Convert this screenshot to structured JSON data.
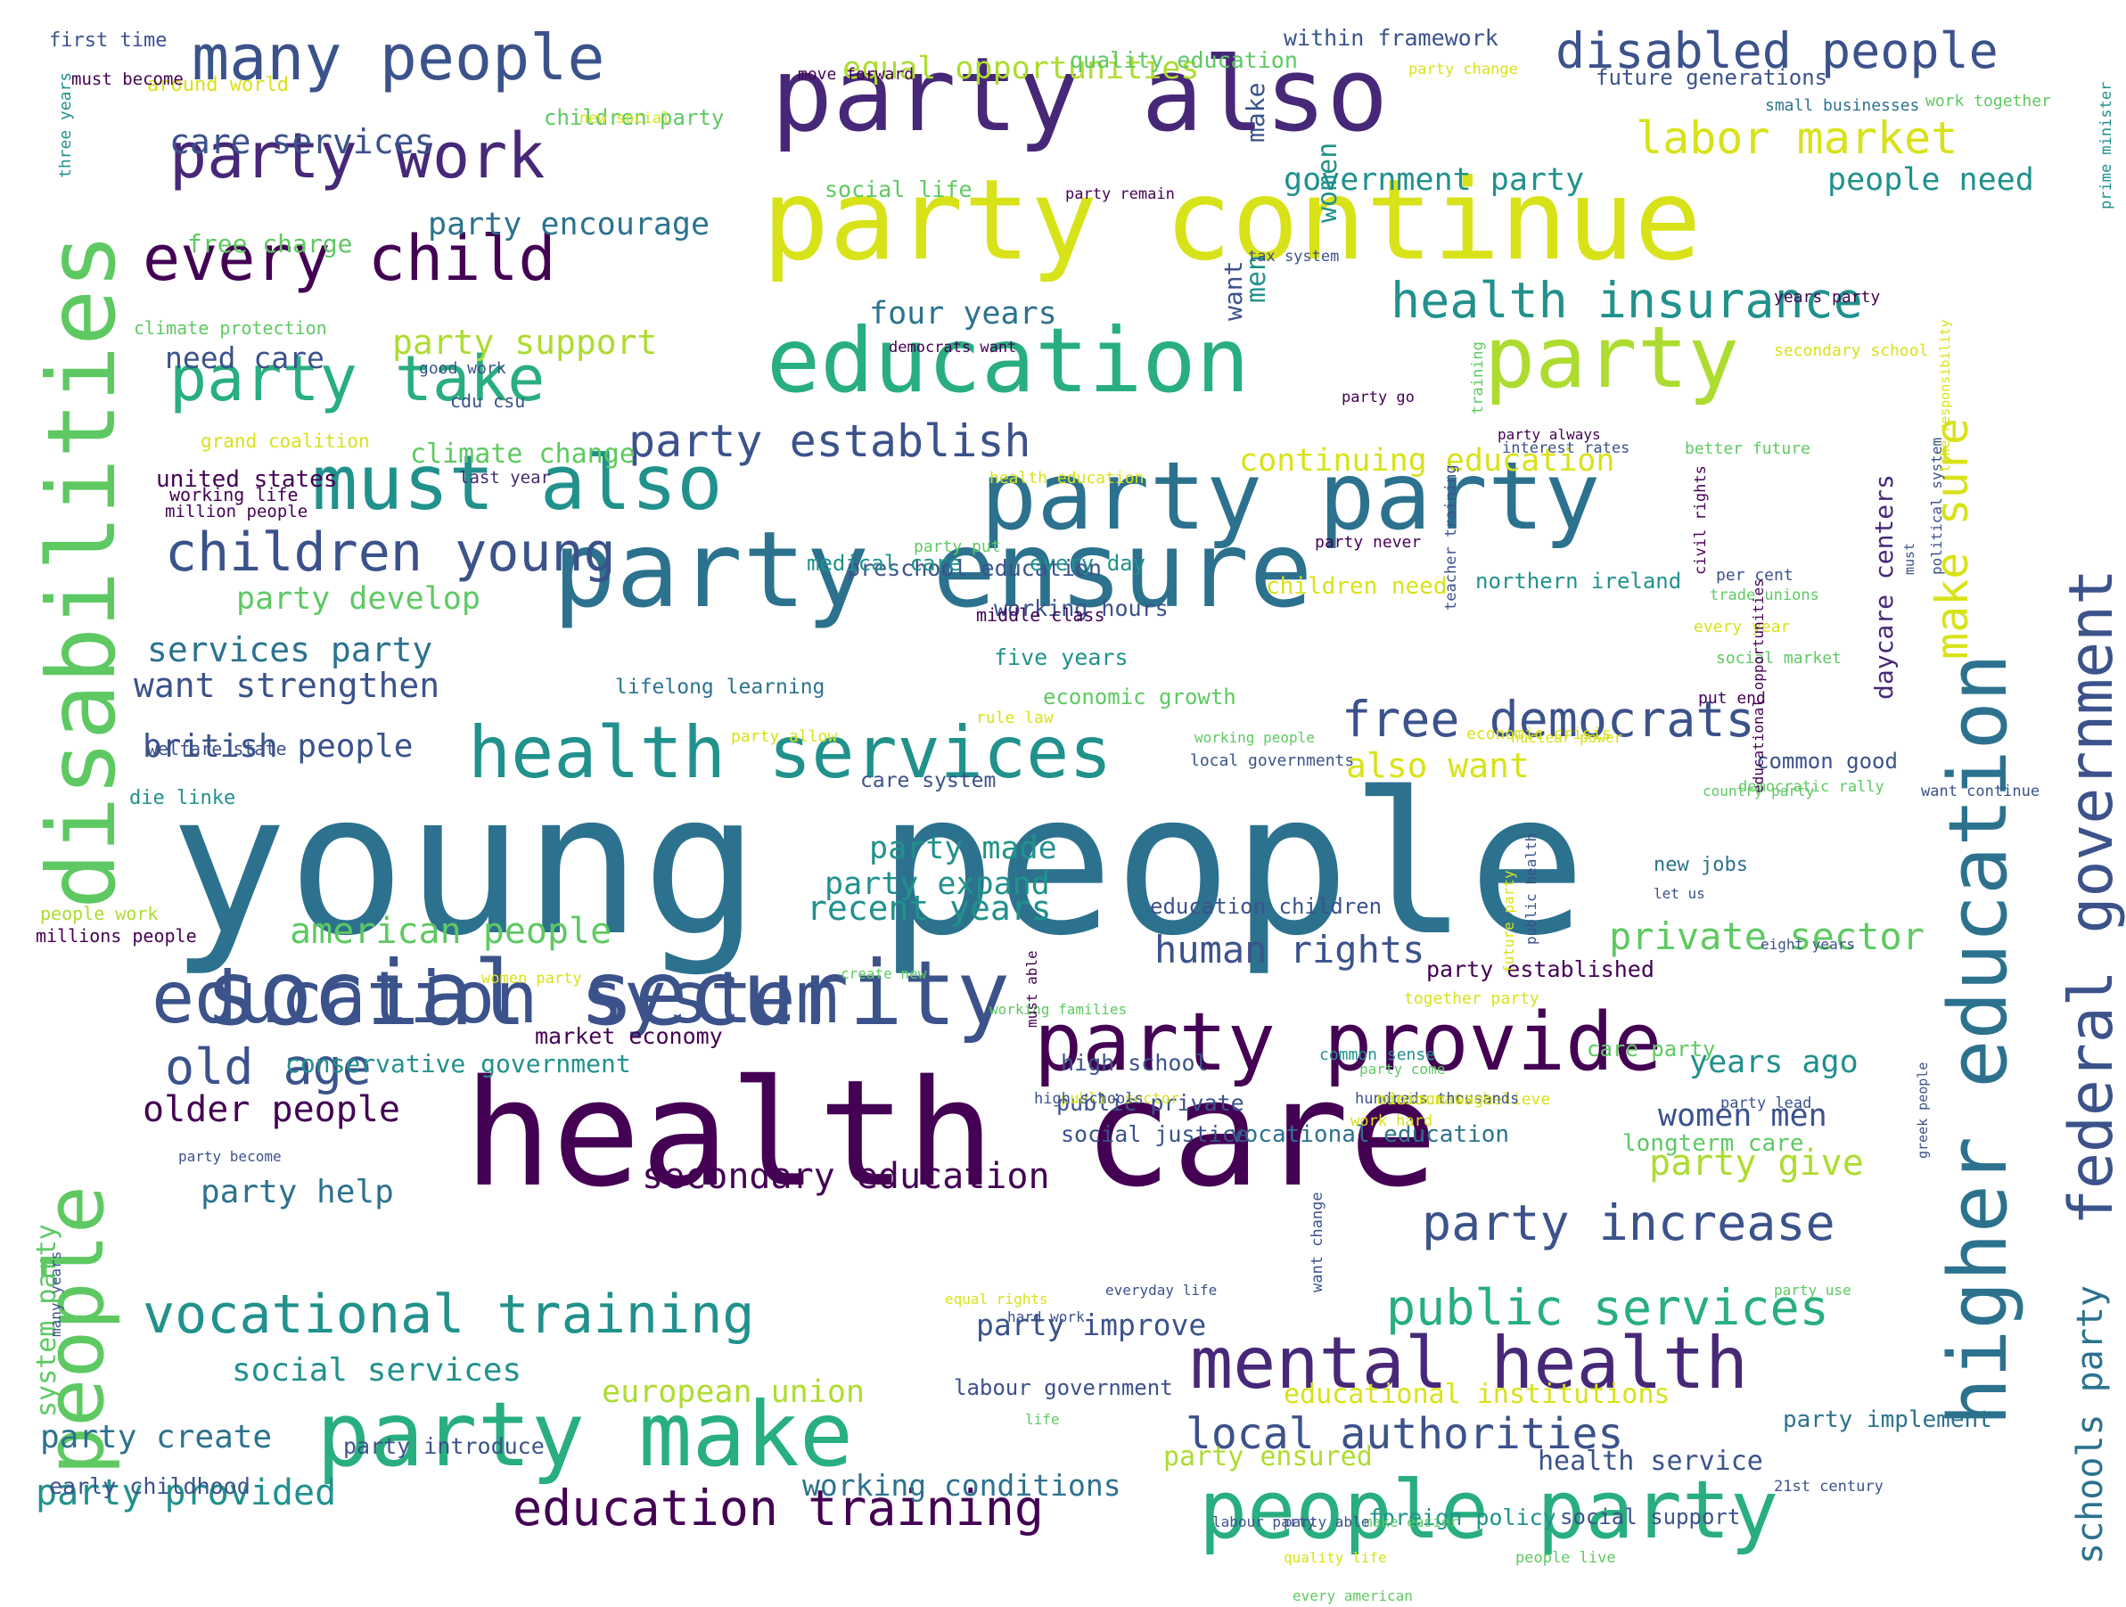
{
  "image": {
    "type": "word cloud"
  },
  "palette": {
    "background": "#ffffff",
    "colors": [
      "#440154",
      "#472878",
      "#3b528b",
      "#2c728e",
      "#21918c",
      "#28ae80",
      "#5ec962",
      "#addc30",
      "#fde725"
    ]
  },
  "words": [
    {
      "text": "young people",
      "color": "#2c728e"
    },
    {
      "text": "health care",
      "color": "#440154"
    },
    {
      "text": "party continue",
      "color": "#d8e219"
    },
    {
      "text": "disabilities",
      "color": "#5ec962"
    },
    {
      "text": "party ensure",
      "color": "#2c728e"
    },
    {
      "text": "social security",
      "color": "#3b528b"
    },
    {
      "text": "party also",
      "color": "#472878"
    },
    {
      "text": "education",
      "color": "#28ae80"
    },
    {
      "text": "party make",
      "color": "#28ae80"
    },
    {
      "text": "higher education",
      "color": "#2c728e"
    },
    {
      "text": "people",
      "color": "#5ec962"
    },
    {
      "text": "party provide",
      "color": "#440154"
    },
    {
      "text": "party party",
      "color": "#2c728e"
    },
    {
      "text": "health services",
      "color": "#21918c"
    },
    {
      "text": "education system",
      "color": "#3b528b"
    },
    {
      "text": "party",
      "color": "#addc30"
    },
    {
      "text": "must also",
      "color": "#21918c"
    },
    {
      "text": "people party",
      "color": "#28ae80"
    },
    {
      "text": "mental health",
      "color": "#472878"
    },
    {
      "text": "vocational training",
      "color": "#21918c"
    },
    {
      "text": "federal government",
      "color": "#3b528b"
    },
    {
      "text": "party take",
      "color": "#28ae80"
    },
    {
      "text": "many people",
      "color": "#3b528b"
    },
    {
      "text": "every child",
      "color": "#440154"
    },
    {
      "text": "party work",
      "color": "#472878"
    },
    {
      "text": "children young",
      "color": "#3b528b"
    },
    {
      "text": "education training",
      "color": "#440154"
    },
    {
      "text": "disabled people",
      "color": "#3b528b"
    },
    {
      "text": "health insurance",
      "color": "#21918c"
    },
    {
      "text": "free democrats",
      "color": "#3b528b"
    },
    {
      "text": "local authorities",
      "color": "#3b528b"
    },
    {
      "text": "party increase",
      "color": "#3b528b"
    },
    {
      "text": "public services",
      "color": "#28ae80"
    },
    {
      "text": "american people",
      "color": "#5ec962"
    },
    {
      "text": "old age",
      "color": "#3b528b"
    },
    {
      "text": "labor market",
      "color": "#d8e219"
    },
    {
      "text": "schools party",
      "color": "#2c728e"
    },
    {
      "text": "make sure",
      "color": "#d8e219"
    },
    {
      "text": "party establish",
      "color": "#3b528b"
    },
    {
      "text": "human rights",
      "color": "#3b528b"
    },
    {
      "text": "private sector",
      "color": "#5ec962"
    },
    {
      "text": "want strengthen",
      "color": "#3b528b"
    },
    {
      "text": "older people",
      "color": "#440154"
    },
    {
      "text": "secondary education",
      "color": "#440154"
    },
    {
      "text": "party provided",
      "color": "#21918c"
    },
    {
      "text": "recent years",
      "color": "#21918c"
    },
    {
      "text": "party support",
      "color": "#addc30"
    },
    {
      "text": "also want",
      "color": "#d8e219"
    },
    {
      "text": "party give",
      "color": "#addc30"
    },
    {
      "text": "care services",
      "color": "#3b528b"
    },
    {
      "text": "services party",
      "color": "#2c728e"
    },
    {
      "text": "british people",
      "color": "#3b528b"
    },
    {
      "text": "party help",
      "color": "#2c728e"
    },
    {
      "text": "social services",
      "color": "#21918c"
    },
    {
      "text": "party create",
      "color": "#2c728e"
    },
    {
      "text": "equal opportunities",
      "color": "#addc30"
    },
    {
      "text": "government party",
      "color": "#21918c"
    },
    {
      "text": "four years",
      "color": "#2c728e"
    },
    {
      "text": "party develop",
      "color": "#5ec962"
    },
    {
      "text": "party made",
      "color": "#21918c"
    },
    {
      "text": "party expand",
      "color": "#21918c"
    },
    {
      "text": "years ago",
      "color": "#21918c"
    },
    {
      "text": "women men",
      "color": "#3b528b"
    },
    {
      "text": "continuing education",
      "color": "#d8e219"
    },
    {
      "text": "people need",
      "color": "#21918c"
    },
    {
      "text": "party encourage",
      "color": "#2c728e"
    },
    {
      "text": "european union",
      "color": "#addc30"
    },
    {
      "text": "working conditions",
      "color": "#2c728e"
    },
    {
      "text": "party improve",
      "color": "#3b528b"
    },
    {
      "text": "party ensured",
      "color": "#addc30"
    },
    {
      "text": "health service",
      "color": "#3b528b"
    },
    {
      "text": "need care",
      "color": "#3b528b"
    },
    {
      "text": "climate change",
      "color": "#5ec962"
    },
    {
      "text": "united states",
      "color": "#440154"
    },
    {
      "text": "conservative government",
      "color": "#21918c"
    },
    {
      "text": "early childhood",
      "color": "#3b528b"
    },
    {
      "text": "system party",
      "color": "#5ec962"
    },
    {
      "text": "daycare centers",
      "color": "#472878"
    },
    {
      "text": "women",
      "color": "#21918c"
    },
    {
      "text": "men",
      "color": "#21918c"
    },
    {
      "text": "want",
      "color": "#3b528b"
    },
    {
      "text": "make",
      "color": "#3b528b"
    },
    {
      "text": "free charge",
      "color": "#5ec962"
    },
    {
      "text": "preschool education",
      "color": "#3b528b"
    },
    {
      "text": "vocational education",
      "color": "#2c728e"
    },
    {
      "text": "longterm care",
      "color": "#5ec962"
    },
    {
      "text": "party implement",
      "color": "#2c728e"
    },
    {
      "text": "market economy",
      "color": "#440154"
    },
    {
      "text": "high school",
      "color": "#3b528b"
    },
    {
      "text": "public private",
      "color": "#3b528b"
    },
    {
      "text": "social justice",
      "color": "#3b528b"
    },
    {
      "text": "medical care",
      "color": "#21918c"
    },
    {
      "text": "every day",
      "color": "#21918c"
    },
    {
      "text": "northern ireland",
      "color": "#21918c"
    },
    {
      "text": "children need",
      "color": "#d8e219"
    },
    {
      "text": "five years",
      "color": "#21918c"
    },
    {
      "text": "working hours",
      "color": "#3b528b"
    },
    {
      "text": "economic growth",
      "color": "#5ec962"
    },
    {
      "text": "lifelong learning",
      "color": "#2c728e"
    },
    {
      "text": "party introduce",
      "color": "#3b528b"
    },
    {
      "text": "foreign policy",
      "color": "#21918c"
    },
    {
      "text": "social support",
      "color": "#3b528b"
    },
    {
      "text": "party established",
      "color": "#440154"
    },
    {
      "text": "education children",
      "color": "#3b528b"
    },
    {
      "text": "care system",
      "color": "#3b528b"
    },
    {
      "text": "care party",
      "color": "#5ec962"
    },
    {
      "text": "labour government",
      "color": "#3b528b"
    },
    {
      "text": "educational institutions",
      "color": "#d8e219"
    },
    {
      "text": "quality education",
      "color": "#5ec962"
    },
    {
      "text": "within framework",
      "color": "#3b528b"
    },
    {
      "text": "future generations",
      "color": "#3b528b"
    },
    {
      "text": "social life",
      "color": "#5ec962"
    },
    {
      "text": "children party",
      "color": "#5ec962"
    },
    {
      "text": "around world",
      "color": "#d8e219"
    },
    {
      "text": "first time",
      "color": "#3b528b"
    },
    {
      "text": "common good",
      "color": "#3b528b"
    },
    {
      "text": "new jobs",
      "color": "#2c728e"
    },
    {
      "text": "people work",
      "color": "#addc30"
    },
    {
      "text": "millions people",
      "color": "#440154"
    },
    {
      "text": "die linke",
      "color": "#21918c"
    },
    {
      "text": "welfare state",
      "color": "#3b528b"
    },
    {
      "text": "working life",
      "color": "#440154"
    },
    {
      "text": "million people",
      "color": "#440154"
    },
    {
      "text": "grand coalition",
      "color": "#d8e219"
    },
    {
      "text": "climate protection",
      "color": "#5ec962"
    },
    {
      "text": "good work",
      "color": "#3b528b"
    },
    {
      "text": "cdu csu",
      "color": "#3b528b"
    },
    {
      "text": "last year",
      "color": "#472878"
    },
    {
      "text": "move forward",
      "color": "#440154"
    },
    {
      "text": "must become",
      "color": "#440154"
    },
    {
      "text": "three years",
      "color": "#21918c"
    },
    {
      "text": "new social",
      "color": "#d8e219"
    },
    {
      "text": "party remain",
      "color": "#440154"
    },
    {
      "text": "party change",
      "color": "#d8e219"
    },
    {
      "text": "small businesses",
      "color": "#2c728e"
    },
    {
      "text": "work together",
      "color": "#5ec962"
    },
    {
      "text": "prime minister",
      "color": "#21918c"
    },
    {
      "text": "tax system",
      "color": "#3b528b"
    },
    {
      "text": "years party",
      "color": "#440154"
    },
    {
      "text": "democrats want",
      "color": "#440154"
    },
    {
      "text": "secondary school",
      "color": "#d8e219"
    },
    {
      "text": "party go",
      "color": "#440154"
    },
    {
      "text": "party always",
      "color": "#440154"
    },
    {
      "text": "interest rates",
      "color": "#3b528b"
    },
    {
      "text": "better future",
      "color": "#5ec962"
    },
    {
      "text": "health education",
      "color": "#d8e219"
    },
    {
      "text": "party never",
      "color": "#440154"
    },
    {
      "text": "training",
      "color": "#5ec962"
    },
    {
      "text": "teacher training",
      "color": "#3b528b"
    },
    {
      "text": "party put",
      "color": "#5ec962"
    },
    {
      "text": "per cent",
      "color": "#3b528b"
    },
    {
      "text": "trade unions",
      "color": "#5ec962"
    },
    {
      "text": "civil rights",
      "color": "#440154"
    },
    {
      "text": "middle class",
      "color": "#440154"
    },
    {
      "text": "every year",
      "color": "#d8e219"
    },
    {
      "text": "social market",
      "color": "#5ec962"
    },
    {
      "text": "put end",
      "color": "#440154"
    },
    {
      "text": "rule law",
      "color": "#d8e219"
    },
    {
      "text": "economic crisis",
      "color": "#d8e219"
    },
    {
      "text": "party allow",
      "color": "#d8e219"
    },
    {
      "text": "working people",
      "color": "#5ec962"
    },
    {
      "text": "local governments",
      "color": "#3b528b"
    },
    {
      "text": "political system",
      "color": "#3b528b"
    },
    {
      "text": "democratic rally",
      "color": "#5ec962"
    },
    {
      "text": "educational opportunities",
      "color": "#440154"
    },
    {
      "text": "nuclear power",
      "color": "#d8e219"
    },
    {
      "text": "country party",
      "color": "#5ec962"
    },
    {
      "text": "want continue",
      "color": "#3b528b"
    },
    {
      "text": "future party",
      "color": "#d8e219"
    },
    {
      "text": "let us",
      "color": "#3b528b"
    },
    {
      "text": "public health",
      "color": "#3b528b"
    },
    {
      "text": "create new",
      "color": "#5ec962"
    },
    {
      "text": "women party",
      "color": "#d8e219"
    },
    {
      "text": "eight years",
      "color": "#3b528b"
    },
    {
      "text": "together party",
      "color": "#d8e219"
    },
    {
      "text": "common sense",
      "color": "#21918c"
    },
    {
      "text": "party come",
      "color": "#5ec962"
    },
    {
      "text": "many years",
      "color": "#3b528b"
    },
    {
      "text": "party become",
      "color": "#3b528b"
    },
    {
      "text": "democrats believe",
      "color": "#d8e219"
    },
    {
      "text": "hundreds thousands",
      "color": "#3b528b"
    },
    {
      "text": "minimum wage",
      "color": "#d8e219"
    },
    {
      "text": "work hard",
      "color": "#d8e219"
    },
    {
      "text": "public sector",
      "color": "#d8e219"
    },
    {
      "text": "high schools",
      "color": "#3b528b"
    },
    {
      "text": "working families",
      "color": "#5ec962"
    },
    {
      "text": "must able",
      "color": "#440154"
    },
    {
      "text": "party lead",
      "color": "#3b528b"
    },
    {
      "text": "everyday life",
      "color": "#3b528b"
    },
    {
      "text": "labour party",
      "color": "#3b528b"
    },
    {
      "text": "make easier",
      "color": "#5ec962"
    },
    {
      "text": "every american",
      "color": "#5ec962"
    },
    {
      "text": "want change",
      "color": "#3b528b"
    },
    {
      "text": "party able",
      "color": "#3b528b"
    },
    {
      "text": "quality life",
      "color": "#d8e219"
    },
    {
      "text": "people live",
      "color": "#5ec962"
    },
    {
      "text": "party use",
      "color": "#5ec962"
    },
    {
      "text": "21st century",
      "color": "#3b528b"
    },
    {
      "text": "hard work",
      "color": "#3b528b"
    },
    {
      "text": "equal rights",
      "color": "#d8e219"
    },
    {
      "text": "life",
      "color": "#5ec962"
    },
    {
      "text": "greek people",
      "color": "#3b528b"
    },
    {
      "text": "take responsibility",
      "color": "#d8e219"
    },
    {
      "text": "must",
      "color": "#3b528b"
    }
  ]
}
